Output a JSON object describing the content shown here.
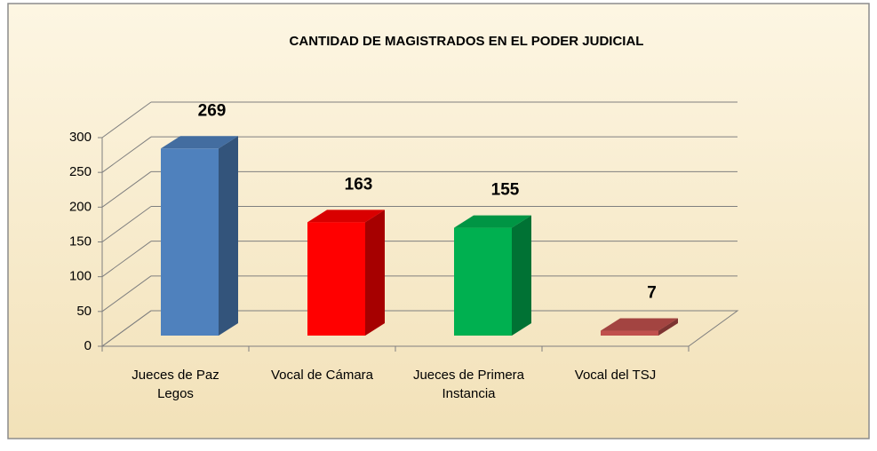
{
  "chart_data": {
    "type": "bar3d",
    "title": "CANTIDAD DE MAGISTRADOS EN EL PODER JUDICIAL",
    "categories": [
      "Jueces de Paz Legos",
      "Vocal de Cámara",
      "Jueces de Primera Instancia",
      "Vocal del TSJ"
    ],
    "values": [
      269,
      163,
      155,
      7
    ],
    "colors": [
      "#4f81bd",
      "#ff0000",
      "#00b050",
      "#c0504d"
    ],
    "ylim": [
      0,
      300
    ],
    "yticks": [
      0,
      50,
      100,
      150,
      200,
      250,
      300
    ],
    "grid": true
  }
}
